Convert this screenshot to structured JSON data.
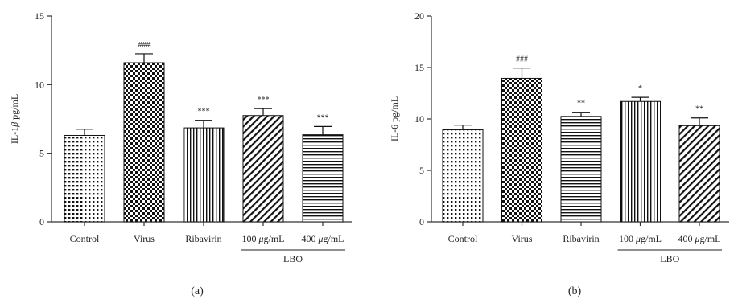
{
  "chart_data": [
    {
      "type": "bar",
      "panel_label": "(a)",
      "ylabel": "IL-1β pg/mL",
      "ylim": [
        0,
        15
      ],
      "yticks": [
        "0",
        "5",
        "10",
        "15"
      ],
      "categories": [
        "Control",
        "Virus",
        "Ribavirin",
        "100 μg/mL",
        "400 μg/mL"
      ],
      "values": [
        6.3,
        11.6,
        6.85,
        7.75,
        6.35
      ],
      "errors": [
        0.45,
        0.65,
        0.55,
        0.5,
        0.6
      ],
      "annotations": [
        "",
        "###",
        "***",
        "***",
        "***"
      ],
      "patterns": [
        "dots",
        "checker",
        "vlines",
        "diag",
        "hlines"
      ],
      "group_label": "LBO",
      "group_categories": [
        3,
        4
      ]
    },
    {
      "type": "bar",
      "panel_label": "(b)",
      "ylabel": "IL-6 pg/mL",
      "ylim": [
        0,
        20
      ],
      "yticks": [
        "0",
        "5",
        "10",
        "15",
        "20"
      ],
      "categories": [
        "Control",
        "Virus",
        "Ribavirin",
        "100 μg/mL",
        "400 μg/mL"
      ],
      "values": [
        8.95,
        13.95,
        10.25,
        11.7,
        9.35
      ],
      "errors": [
        0.45,
        1.0,
        0.4,
        0.4,
        0.75
      ],
      "annotations": [
        "",
        "###",
        "**",
        "*",
        "**"
      ],
      "patterns": [
        "dots",
        "checker",
        "hlines",
        "vlines",
        "diag"
      ],
      "group_label": "LBO",
      "group_categories": [
        3,
        4
      ]
    }
  ]
}
